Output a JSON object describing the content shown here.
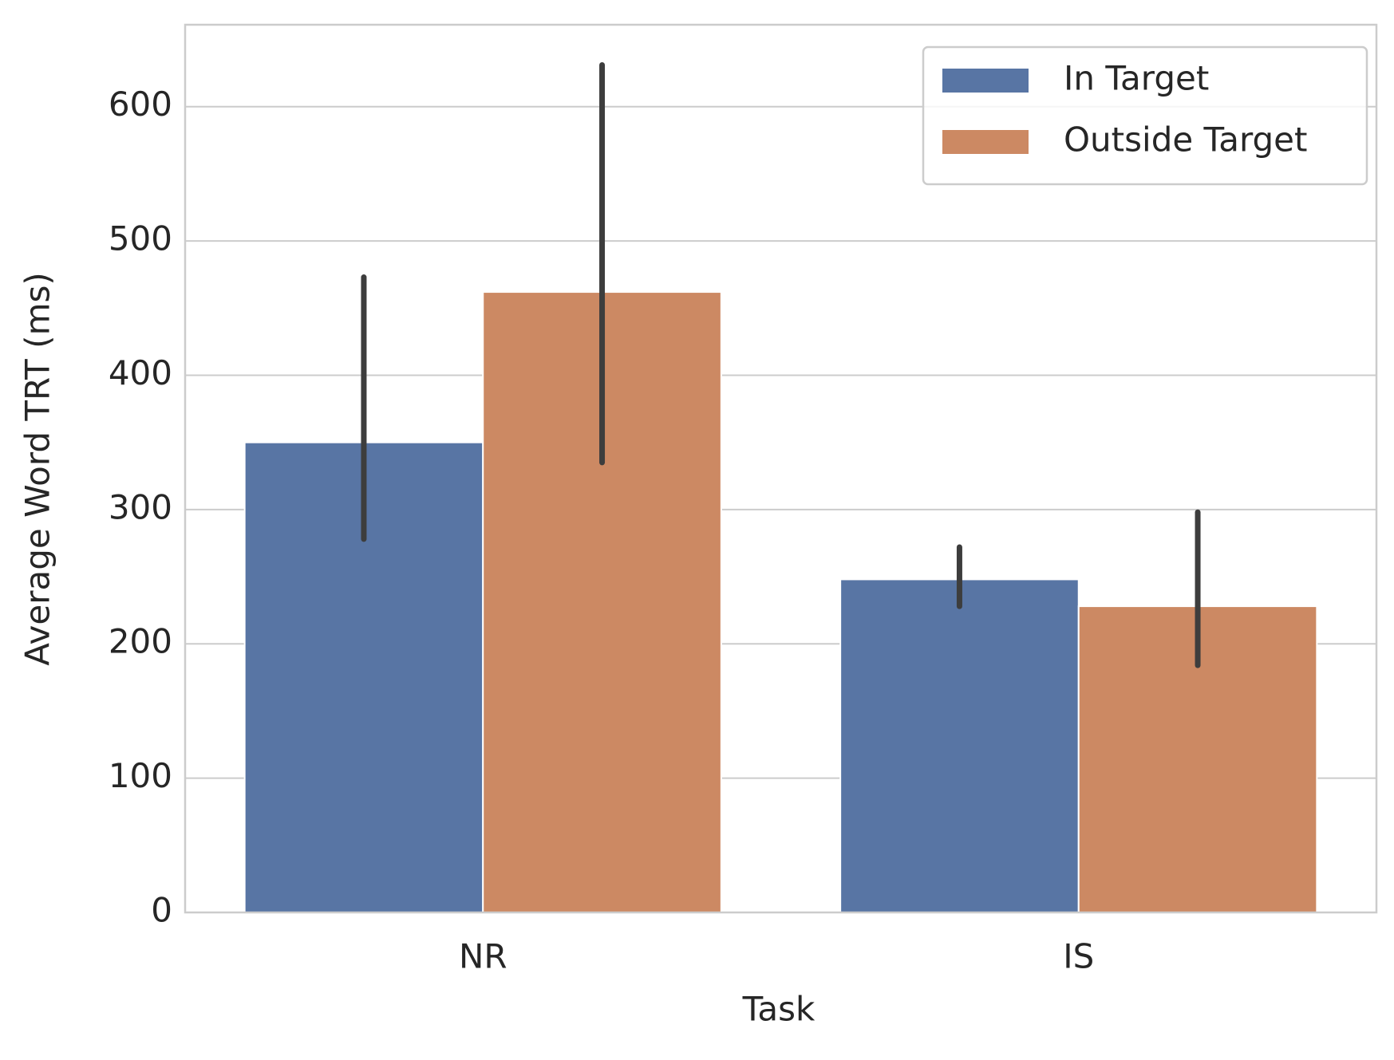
{
  "chart_data": {
    "type": "bar",
    "x_label": "Task",
    "y_label": "Average Word TRT (ms)",
    "categories": [
      "NR",
      "IS"
    ],
    "series": [
      {
        "name": "In Target",
        "color": "#5875a4",
        "values": [
          350,
          248
        ],
        "ci_low": [
          278,
          228
        ],
        "ci_high": [
          473,
          272
        ]
      },
      {
        "name": "Outside Target",
        "color": "#cc8963",
        "values": [
          462,
          228
        ],
        "ci_low": [
          335,
          184
        ],
        "ci_high": [
          631,
          298
        ]
      }
    ],
    "ylim": [
      0,
      661
    ],
    "yticks": [
      0,
      100,
      200,
      300,
      400,
      500,
      600
    ],
    "grid": true,
    "legend": "upper right"
  }
}
